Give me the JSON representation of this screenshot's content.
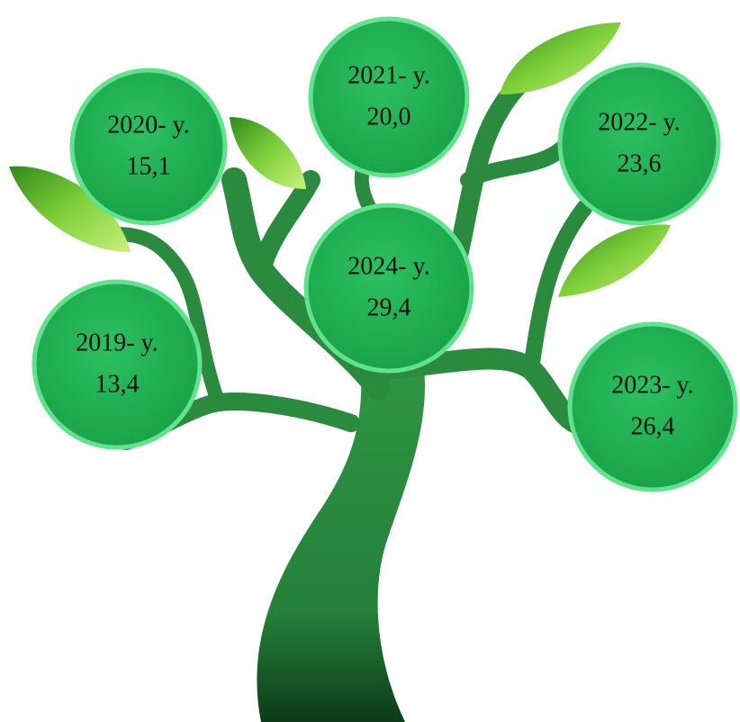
{
  "nodes": [
    {
      "year": "2019- y.",
      "value": "13,4"
    },
    {
      "year": "2020- y.",
      "value": "15,1"
    },
    {
      "year": "2021- y.",
      "value": "20,0"
    },
    {
      "year": "2022- y.",
      "value": "23,6"
    },
    {
      "year": "2023- y.",
      "value": "26,4"
    },
    {
      "year": "2024- y.",
      "value": "29,4"
    }
  ]
}
